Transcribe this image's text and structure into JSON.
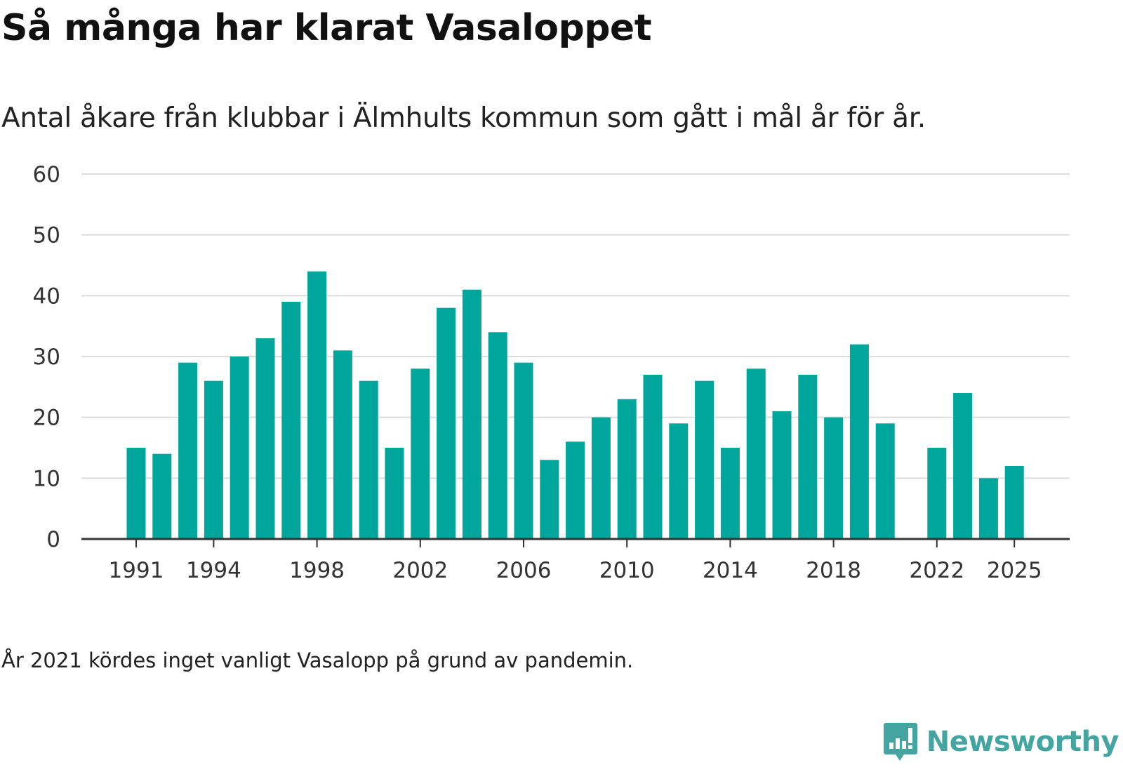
{
  "title": "Så många har klarat Vasaloppet",
  "subtitle": "Antal åkare från klubbar i Älmhults kommun som gått i mål år för år.",
  "note": "År 2021 kördes inget vanligt Vasalopp på grund av pandemin.",
  "brand": {
    "name": "Newsworthy",
    "icon": "newsworthy-logo-icon",
    "color": "#44a5a0"
  },
  "colors": {
    "bar": "#00a59b",
    "grid": "#dcdcdc",
    "axis": "#333333"
  },
  "chart_data": {
    "type": "bar",
    "title": "Så många har klarat Vasaloppet",
    "xlabel": "",
    "ylabel": "",
    "ylim": [
      0,
      60
    ],
    "yticks": [
      0,
      10,
      20,
      30,
      40,
      50,
      60
    ],
    "xticks": [
      1991,
      1994,
      1998,
      2002,
      2006,
      2010,
      2014,
      2018,
      2022,
      2025
    ],
    "grid": true,
    "categories": [
      1991,
      1992,
      1993,
      1994,
      1995,
      1996,
      1997,
      1998,
      1999,
      2000,
      2001,
      2002,
      2003,
      2004,
      2005,
      2006,
      2007,
      2008,
      2009,
      2010,
      2011,
      2012,
      2013,
      2014,
      2015,
      2016,
      2017,
      2018,
      2019,
      2020,
      2021,
      2022,
      2023,
      2024,
      2025
    ],
    "values": [
      15,
      14,
      29,
      26,
      30,
      33,
      39,
      44,
      31,
      26,
      15,
      28,
      38,
      41,
      34,
      29,
      13,
      16,
      20,
      23,
      27,
      19,
      26,
      15,
      28,
      21,
      27,
      20,
      32,
      19,
      null,
      15,
      24,
      10,
      12
    ]
  }
}
